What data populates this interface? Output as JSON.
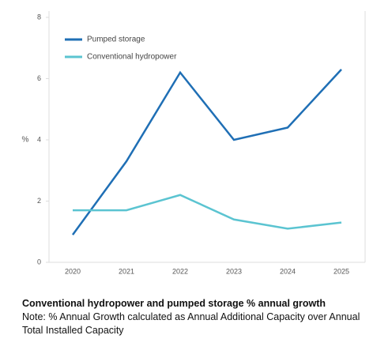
{
  "chart_data": {
    "type": "line",
    "ylabel": "%",
    "categories": [
      "2020",
      "2021",
      "2022",
      "2023",
      "2024",
      "2025"
    ],
    "series": [
      {
        "name": "Pumped storage",
        "color": "#1f6fb5",
        "values": [
          0.9,
          3.3,
          6.2,
          4.0,
          4.4,
          6.3
        ]
      },
      {
        "name": "Conventional hydropower",
        "color": "#5bc4d1",
        "values": [
          1.7,
          1.7,
          2.2,
          1.4,
          1.1,
          1.3
        ]
      }
    ],
    "ylim": [
      0,
      8
    ],
    "yticks": [
      0,
      2,
      4,
      6,
      8
    ],
    "caption_title": "Conventional hydropower and pumped storage % annual growth",
    "caption_note": "Note: % Annual Growth calculated as Annual Additional Capacity over Annual Total Installed Capacity"
  }
}
